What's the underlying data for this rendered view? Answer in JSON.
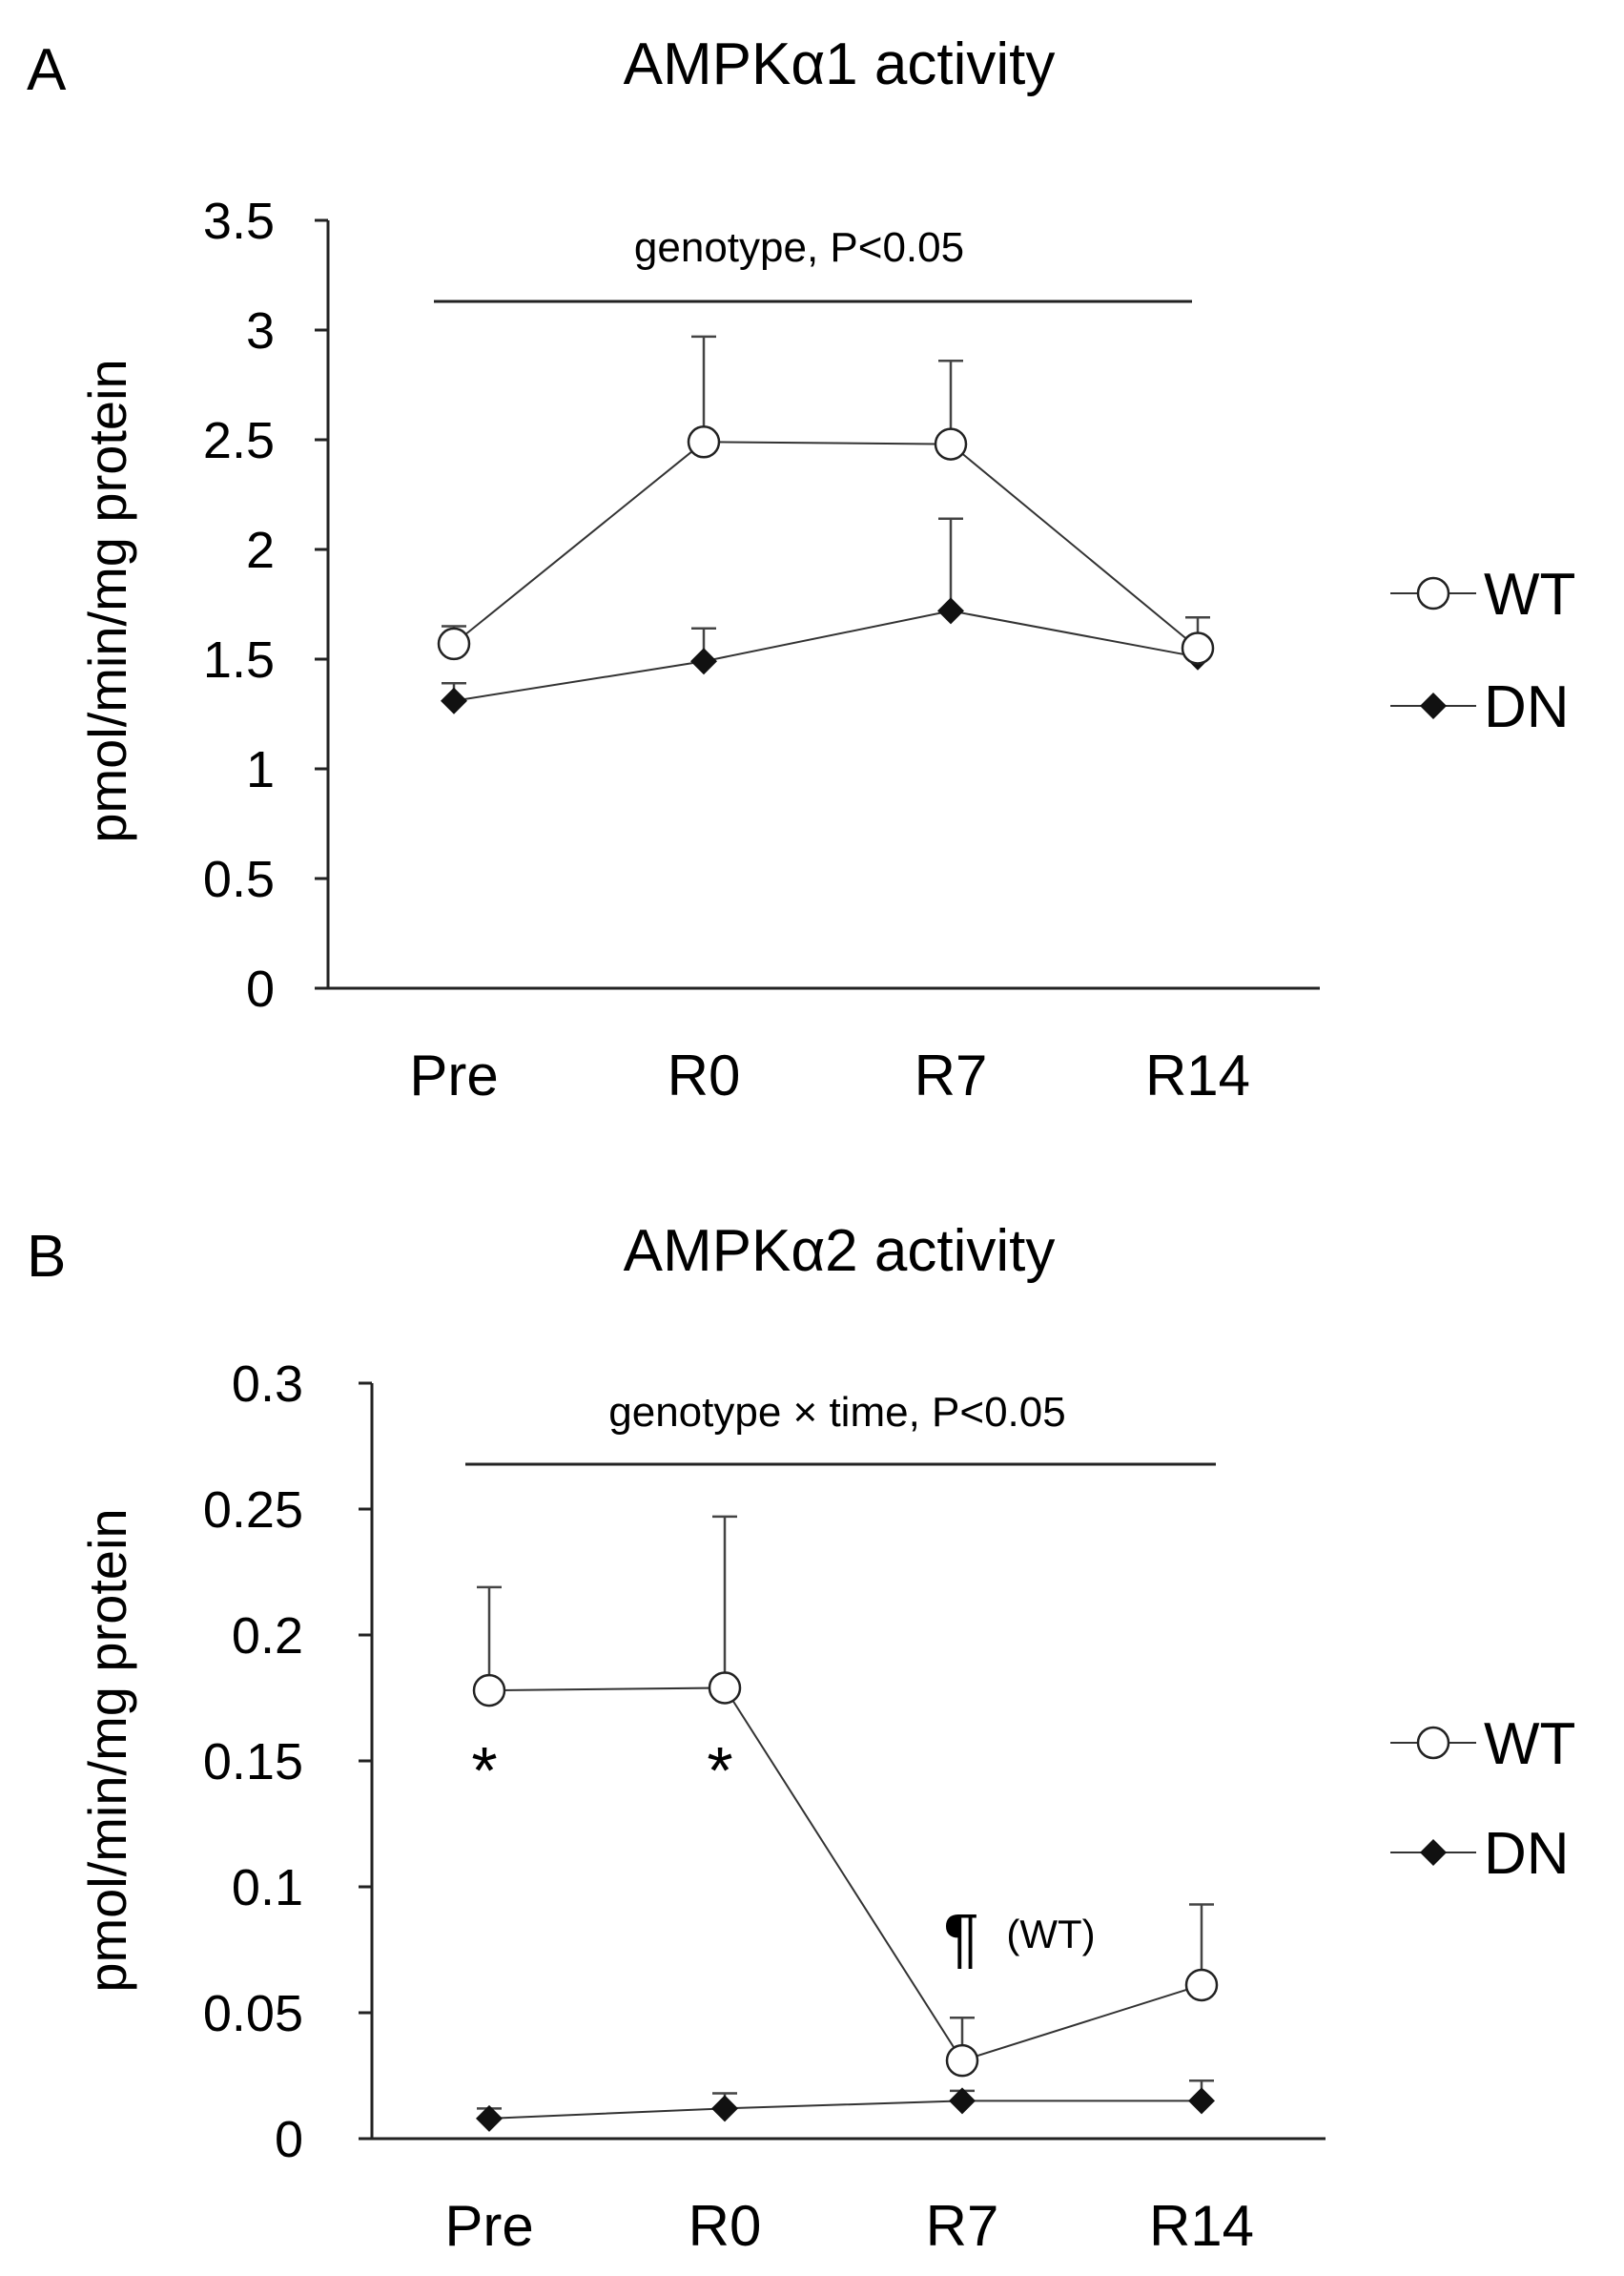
{
  "chart_data": [
    {
      "panel": "A",
      "type": "line",
      "title": "AMPKα1 activity",
      "ylabel": "pmol/min/mg protein",
      "xlabel": "",
      "categories": [
        "Pre",
        "R0",
        "R7",
        "R14"
      ],
      "ylim": [
        0,
        3.5
      ],
      "yticks": [
        "0",
        "0.5",
        "1",
        "1.5",
        "2",
        "2.5",
        "3",
        "3.5"
      ],
      "yticks_values": [
        0,
        0.5,
        1,
        1.5,
        2,
        2.5,
        3,
        3.5
      ],
      "series": [
        {
          "name": "WT",
          "marker": "open-circle",
          "values": [
            1.57,
            2.49,
            2.48,
            1.55
          ],
          "error": [
            0.08,
            0.48,
            0.38,
            0.14
          ]
        },
        {
          "name": "DN",
          "marker": "filled-diamond",
          "values": [
            1.31,
            1.49,
            1.72,
            1.51
          ],
          "error": [
            0.08,
            0.15,
            0.42,
            0.06
          ]
        }
      ],
      "annotations": [
        {
          "text": "genotype, P<0.05",
          "kind": "bracket"
        }
      ],
      "legend": "right"
    },
    {
      "panel": "B",
      "type": "line",
      "title": "AMPKα2 activity",
      "ylabel": "pmol/min/mg protein",
      "xlabel": "",
      "categories": [
        "Pre",
        "R0",
        "R7",
        "R14"
      ],
      "ylim": [
        0,
        0.3
      ],
      "yticks": [
        "0",
        "0.05",
        "0.1",
        "0.15",
        "0.2",
        "0.25",
        "0.3"
      ],
      "yticks_values": [
        0,
        0.05,
        0.1,
        0.15,
        0.2,
        0.25,
        0.3
      ],
      "series": [
        {
          "name": "WT",
          "marker": "open-circle",
          "values": [
            0.178,
            0.179,
            0.031,
            0.061
          ],
          "error": [
            0.041,
            0.068,
            0.017,
            0.032
          ]
        },
        {
          "name": "DN",
          "marker": "filled-diamond",
          "values": [
            0.008,
            0.012,
            0.015,
            0.015
          ],
          "error": [
            0.004,
            0.006,
            0.004,
            0.008
          ]
        }
      ],
      "annotations": [
        {
          "text": "genotype × time, P<0.05",
          "kind": "bracket"
        },
        {
          "text": "*",
          "category": "Pre",
          "kind": "significance"
        },
        {
          "text": "*",
          "category": "R0",
          "kind": "significance"
        },
        {
          "text": "¶",
          "category": "R7",
          "kind": "significance"
        },
        {
          "text": "(WT)",
          "category": "R7",
          "kind": "note"
        }
      ],
      "legend": "right"
    }
  ]
}
